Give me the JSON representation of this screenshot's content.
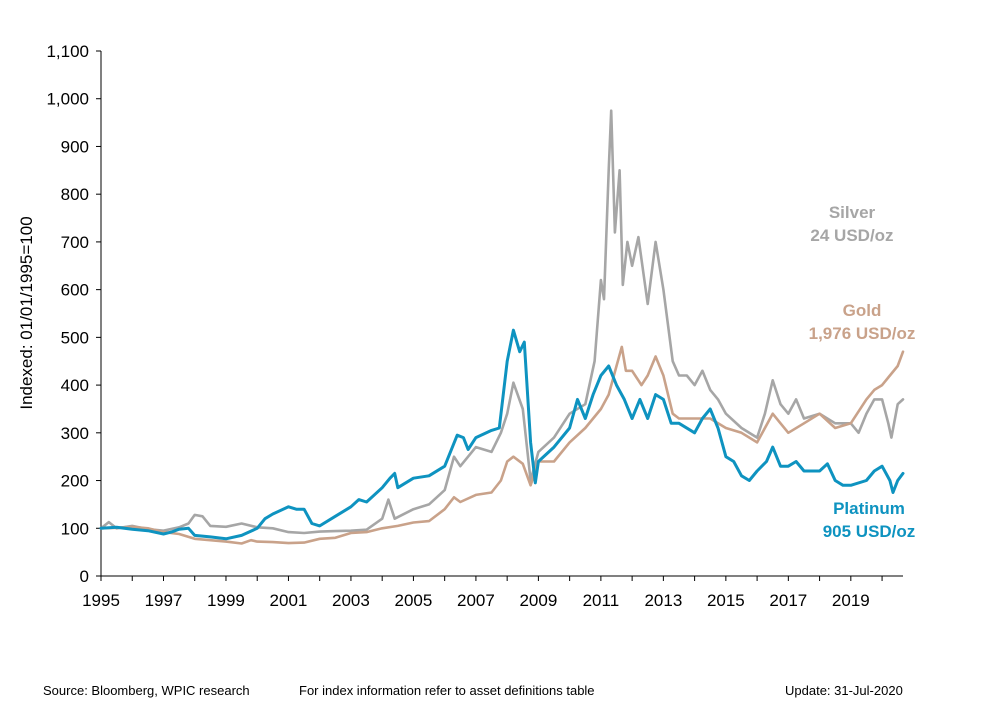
{
  "chart_data": {
    "type": "line",
    "ylabel": "Indexed: 01/01/1995=100",
    "xlim": [
      1995,
      2020.67
    ],
    "ylim": [
      0,
      1100
    ],
    "y_ticks": [
      0,
      100,
      200,
      300,
      400,
      500,
      600,
      700,
      800,
      900,
      1000,
      1100
    ],
    "y_tick_labels": [
      "0",
      "100",
      "200",
      "300",
      "400",
      "500",
      "600",
      "700",
      "800",
      "900",
      "1,000",
      "1,100"
    ],
    "x_ticks": [
      1995,
      1997,
      1999,
      2001,
      2003,
      2005,
      2007,
      2009,
      2011,
      2013,
      2015,
      2017,
      2019
    ],
    "x_tick_labels": [
      "1995",
      "1997",
      "1999",
      "2001",
      "2003",
      "2005",
      "2007",
      "2009",
      "2011",
      "2013",
      "2015",
      "2017",
      "2019"
    ],
    "grid": false,
    "series": [
      {
        "key": "silver",
        "label_line1": "Silver",
        "label_line2": "24 USD/oz",
        "color": "#a6a6a6",
        "points": [
          [
            1995,
            100
          ],
          [
            1995.25,
            113
          ],
          [
            1995.5,
            100
          ],
          [
            1996,
            105
          ],
          [
            1996.5,
            98
          ],
          [
            1997,
            95
          ],
          [
            1997.5,
            102
          ],
          [
            1997.8,
            110
          ],
          [
            1998,
            128
          ],
          [
            1998.25,
            125
          ],
          [
            1998.5,
            105
          ],
          [
            1999,
            103
          ],
          [
            1999.5,
            110
          ],
          [
            2000,
            102
          ],
          [
            2000.5,
            100
          ],
          [
            2001,
            92
          ],
          [
            2001.5,
            90
          ],
          [
            2002,
            93
          ],
          [
            2002.5,
            94
          ],
          [
            2003,
            95
          ],
          [
            2003.5,
            97
          ],
          [
            2004,
            120
          ],
          [
            2004.2,
            160
          ],
          [
            2004.4,
            120
          ],
          [
            2005,
            140
          ],
          [
            2005.5,
            150
          ],
          [
            2006,
            180
          ],
          [
            2006.3,
            250
          ],
          [
            2006.5,
            230
          ],
          [
            2007,
            270
          ],
          [
            2007.5,
            260
          ],
          [
            2007.8,
            300
          ],
          [
            2008,
            340
          ],
          [
            2008.2,
            405
          ],
          [
            2008.5,
            350
          ],
          [
            2008.75,
            200
          ],
          [
            2009,
            260
          ],
          [
            2009.5,
            290
          ],
          [
            2010,
            340
          ],
          [
            2010.5,
            360
          ],
          [
            2010.8,
            450
          ],
          [
            2011,
            620
          ],
          [
            2011.1,
            580
          ],
          [
            2011.25,
            850
          ],
          [
            2011.33,
            975
          ],
          [
            2011.45,
            720
          ],
          [
            2011.6,
            850
          ],
          [
            2011.7,
            610
          ],
          [
            2011.85,
            700
          ],
          [
            2012,
            650
          ],
          [
            2012.2,
            710
          ],
          [
            2012.5,
            570
          ],
          [
            2012.75,
            700
          ],
          [
            2013,
            600
          ],
          [
            2013.3,
            450
          ],
          [
            2013.5,
            420
          ],
          [
            2013.75,
            420
          ],
          [
            2014,
            400
          ],
          [
            2014.25,
            430
          ],
          [
            2014.5,
            390
          ],
          [
            2014.75,
            370
          ],
          [
            2015,
            340
          ],
          [
            2015.5,
            310
          ],
          [
            2016,
            290
          ],
          [
            2016.25,
            340
          ],
          [
            2016.5,
            410
          ],
          [
            2016.75,
            360
          ],
          [
            2017,
            340
          ],
          [
            2017.25,
            370
          ],
          [
            2017.5,
            330
          ],
          [
            2018,
            340
          ],
          [
            2018.5,
            320
          ],
          [
            2019,
            320
          ],
          [
            2019.25,
            300
          ],
          [
            2019.5,
            340
          ],
          [
            2019.75,
            370
          ],
          [
            2020,
            370
          ],
          [
            2020.2,
            320
          ],
          [
            2020.3,
            290
          ],
          [
            2020.5,
            360
          ],
          [
            2020.67,
            370
          ]
        ]
      },
      {
        "key": "gold",
        "label_line1": "Gold",
        "label_line2": "1,976 USD/oz",
        "color": "#c9a28a",
        "points": [
          [
            1995,
            100
          ],
          [
            1995.5,
            101
          ],
          [
            1996,
            103
          ],
          [
            1996.5,
            100
          ],
          [
            1997,
            92
          ],
          [
            1997.5,
            88
          ],
          [
            1998,
            78
          ],
          [
            1998.5,
            75
          ],
          [
            1999,
            72
          ],
          [
            1999.5,
            68
          ],
          [
            1999.8,
            75
          ],
          [
            2000,
            72
          ],
          [
            2000.5,
            71
          ],
          [
            2001,
            69
          ],
          [
            2001.5,
            70
          ],
          [
            2002,
            78
          ],
          [
            2002.5,
            80
          ],
          [
            2003,
            90
          ],
          [
            2003.5,
            92
          ],
          [
            2004,
            100
          ],
          [
            2004.5,
            105
          ],
          [
            2005,
            112
          ],
          [
            2005.5,
            115
          ],
          [
            2006,
            140
          ],
          [
            2006.3,
            165
          ],
          [
            2006.5,
            155
          ],
          [
            2007,
            170
          ],
          [
            2007.5,
            175
          ],
          [
            2007.8,
            200
          ],
          [
            2008,
            240
          ],
          [
            2008.2,
            250
          ],
          [
            2008.5,
            235
          ],
          [
            2008.75,
            190
          ],
          [
            2009,
            240
          ],
          [
            2009.5,
            240
          ],
          [
            2010,
            280
          ],
          [
            2010.5,
            310
          ],
          [
            2011,
            350
          ],
          [
            2011.25,
            380
          ],
          [
            2011.5,
            440
          ],
          [
            2011.67,
            480
          ],
          [
            2011.8,
            430
          ],
          [
            2012,
            430
          ],
          [
            2012.3,
            400
          ],
          [
            2012.5,
            420
          ],
          [
            2012.75,
            460
          ],
          [
            2013,
            420
          ],
          [
            2013.3,
            340
          ],
          [
            2013.5,
            330
          ],
          [
            2014,
            330
          ],
          [
            2014.5,
            330
          ],
          [
            2015,
            310
          ],
          [
            2015.5,
            300
          ],
          [
            2016,
            280
          ],
          [
            2016.5,
            340
          ],
          [
            2016.75,
            320
          ],
          [
            2017,
            300
          ],
          [
            2017.5,
            320
          ],
          [
            2018,
            340
          ],
          [
            2018.5,
            310
          ],
          [
            2019,
            320
          ],
          [
            2019.5,
            370
          ],
          [
            2019.75,
            390
          ],
          [
            2020,
            400
          ],
          [
            2020.25,
            420
          ],
          [
            2020.5,
            440
          ],
          [
            2020.67,
            470
          ]
        ]
      },
      {
        "key": "platinum",
        "label_line1": "Platinum",
        "label_line2": "905 USD/oz",
        "color": "#0e93c0",
        "points": [
          [
            1995,
            100
          ],
          [
            1995.5,
            102
          ],
          [
            1996,
            98
          ],
          [
            1996.5,
            95
          ],
          [
            1997,
            88
          ],
          [
            1997.25,
            92
          ],
          [
            1997.5,
            98
          ],
          [
            1997.8,
            100
          ],
          [
            1998,
            85
          ],
          [
            1998.5,
            82
          ],
          [
            1999,
            78
          ],
          [
            1999.5,
            85
          ],
          [
            2000,
            100
          ],
          [
            2000.25,
            120
          ],
          [
            2000.5,
            130
          ],
          [
            2001,
            145
          ],
          [
            2001.25,
            140
          ],
          [
            2001.5,
            140
          ],
          [
            2001.75,
            110
          ],
          [
            2002,
            105
          ],
          [
            2002.5,
            125
          ],
          [
            2003,
            145
          ],
          [
            2003.25,
            160
          ],
          [
            2003.5,
            155
          ],
          [
            2004,
            185
          ],
          [
            2004.25,
            205
          ],
          [
            2004.4,
            215
          ],
          [
            2004.5,
            185
          ],
          [
            2005,
            205
          ],
          [
            2005.5,
            210
          ],
          [
            2006,
            230
          ],
          [
            2006.4,
            295
          ],
          [
            2006.6,
            290
          ],
          [
            2006.75,
            265
          ],
          [
            2007,
            290
          ],
          [
            2007.5,
            305
          ],
          [
            2007.75,
            310
          ],
          [
            2008,
            450
          ],
          [
            2008.2,
            515
          ],
          [
            2008.4,
            470
          ],
          [
            2008.55,
            490
          ],
          [
            2008.75,
            280
          ],
          [
            2008.9,
            195
          ],
          [
            2009,
            240
          ],
          [
            2009.5,
            270
          ],
          [
            2010,
            310
          ],
          [
            2010.25,
            370
          ],
          [
            2010.5,
            330
          ],
          [
            2010.75,
            380
          ],
          [
            2011,
            420
          ],
          [
            2011.25,
            440
          ],
          [
            2011.5,
            400
          ],
          [
            2011.75,
            370
          ],
          [
            2012,
            330
          ],
          [
            2012.25,
            370
          ],
          [
            2012.5,
            330
          ],
          [
            2012.75,
            380
          ],
          [
            2013,
            370
          ],
          [
            2013.25,
            320
          ],
          [
            2013.5,
            320
          ],
          [
            2014,
            300
          ],
          [
            2014.25,
            330
          ],
          [
            2014.5,
            350
          ],
          [
            2014.75,
            310
          ],
          [
            2015,
            250
          ],
          [
            2015.25,
            240
          ],
          [
            2015.5,
            210
          ],
          [
            2015.75,
            200
          ],
          [
            2016,
            220
          ],
          [
            2016.3,
            240
          ],
          [
            2016.5,
            270
          ],
          [
            2016.75,
            230
          ],
          [
            2017,
            230
          ],
          [
            2017.25,
            240
          ],
          [
            2017.5,
            220
          ],
          [
            2018,
            220
          ],
          [
            2018.25,
            235
          ],
          [
            2018.5,
            200
          ],
          [
            2018.75,
            190
          ],
          [
            2019,
            190
          ],
          [
            2019.5,
            200
          ],
          [
            2019.75,
            220
          ],
          [
            2020,
            230
          ],
          [
            2020.25,
            200
          ],
          [
            2020.35,
            175
          ],
          [
            2020.5,
            200
          ],
          [
            2020.67,
            215
          ]
        ]
      }
    ]
  },
  "footer": {
    "source": "Source: Bloomberg, WPIC research",
    "note": "For index information refer to asset definitions table",
    "update": "Update: 31-Jul-2020"
  }
}
